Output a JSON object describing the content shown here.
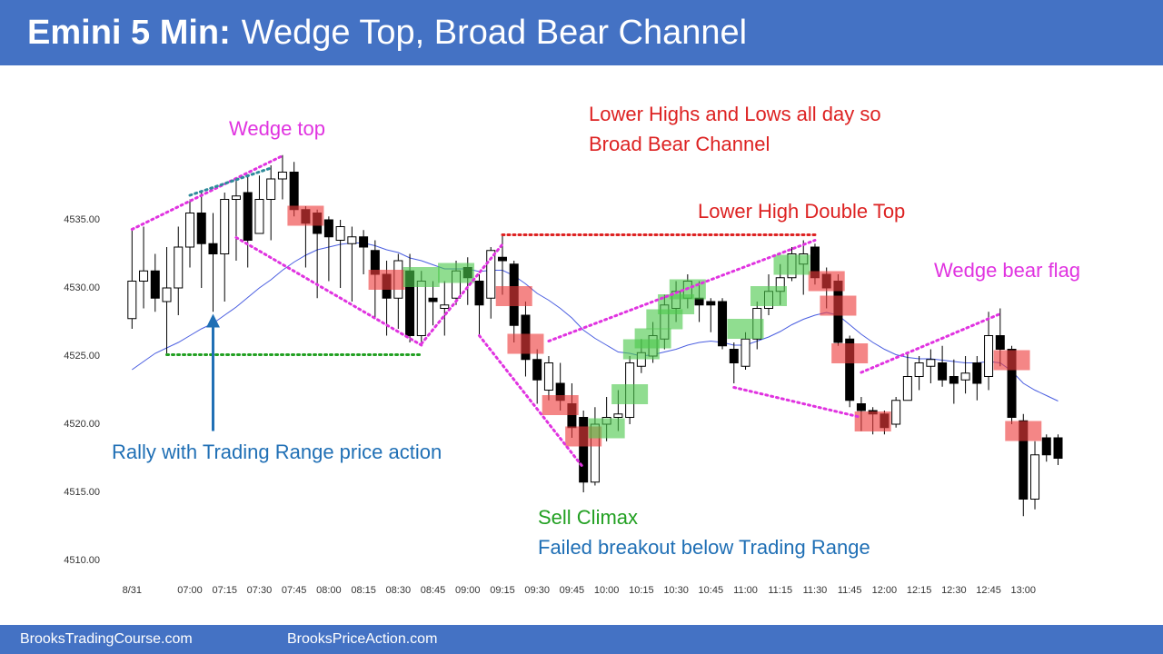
{
  "header": {
    "title_bold": "Emini 5 Min:",
    "title": "Wedge Top, Broad Bear Channel"
  },
  "chart_data": {
    "type": "candlestick",
    "categories": [
      "8/31",
      null,
      null,
      null,
      null,
      "07:00",
      null,
      null,
      "07:15",
      null,
      null,
      "07:30",
      null,
      null,
      "07:45",
      null,
      null,
      "08:00",
      null,
      null,
      "08:15",
      null,
      null,
      "08:30",
      null,
      null,
      "08:45",
      null,
      null,
      "09:00",
      null,
      null,
      "09:15",
      null,
      null,
      "09:30",
      null,
      null,
      "09:45",
      null,
      null,
      "10:00",
      null,
      null,
      "10:15",
      null,
      null,
      "10:30",
      null,
      null,
      "10:45",
      null,
      null,
      "11:00",
      null,
      null,
      "11:15",
      null,
      null,
      "11:30",
      null,
      null,
      "11:45",
      null,
      null,
      "12:00",
      null,
      null,
      "12:15",
      null,
      null,
      "12:30",
      null,
      null,
      "12:45",
      null,
      null,
      "13:00",
      null,
      null,
      null
    ],
    "open": [
      4527.75,
      4530.5,
      4531.25,
      4529.0,
      4530.0,
      4533.0,
      4535.5,
      4533.25,
      4532.5,
      4536.5,
      4537.0,
      4534.0,
      4536.5,
      4538.0,
      4538.5,
      4535.75,
      4535.5,
      4535.0,
      4533.5,
      4533.25,
      4533.75,
      4532.75,
      4531.0,
      4529.25,
      4531.25,
      4526.5,
      4529.25,
      4528.5,
      4529.25,
      4531.5,
      4530.5,
      4529.25,
      4532.25,
      4531.75,
      4528.0,
      4524.75,
      4522.5,
      4523.0,
      4521.5,
      4520.5,
      4515.75,
      4520.0,
      4520.5,
      4520.5,
      4524.25,
      4525.0,
      4526.25,
      4528.5,
      4529.25,
      4529.25,
      4529.0,
      4529.0,
      4525.5,
      4524.25,
      4526.25,
      4528.5,
      4529.75,
      4530.75,
      4531.75,
      4533.0,
      4531.0,
      4530.5,
      4526.25,
      4521.5,
      4521.0,
      4520.75,
      4520.0,
      4521.75,
      4523.5,
      4524.25,
      4524.5,
      4523.5,
      4523.25,
      4524.5,
      4523.5,
      4526.5,
      4525.5,
      4520.25,
      4514.5,
      4519.0,
      4519.0
    ],
    "high": [
      4534.25,
      4534.5,
      4532.5,
      4533.0,
      4534.5,
      4536.5,
      4537.0,
      4535.5,
      4537.0,
      4538.0,
      4538.25,
      4538.25,
      4539.0,
      4539.75,
      4539.25,
      4536.0,
      4535.75,
      4535.25,
      4535.0,
      4534.5,
      4534.25,
      4533.5,
      4532.0,
      4532.5,
      4532.5,
      4531.25,
      4530.5,
      4530.5,
      4532.0,
      4532.25,
      4531.0,
      4533.0,
      4534.0,
      4532.0,
      4529.0,
      4525.5,
      4525.0,
      4524.5,
      4523.0,
      4521.0,
      4521.25,
      4522.0,
      4522.5,
      4525.0,
      4526.25,
      4527.5,
      4529.5,
      4530.5,
      4531.0,
      4530.5,
      4529.25,
      4529.25,
      4526.0,
      4526.75,
      4529.0,
      4531.0,
      4531.75,
      4533.0,
      4533.5,
      4533.25,
      4531.5,
      4531.0,
      4526.5,
      4522.0,
      4521.25,
      4521.0,
      4522.0,
      4525.25,
      4525.0,
      4525.5,
      4525.75,
      4524.75,
      4525.0,
      4525.0,
      4528.25,
      4528.5,
      4525.75,
      4520.75,
      4518.75,
      4519.25,
      4519.25
    ],
    "low": [
      4527.0,
      4528.5,
      4528.25,
      4525.0,
      4528.0,
      4531.5,
      4530.0,
      4528.25,
      4529.0,
      4532.0,
      4531.5,
      4534.0,
      4533.5,
      4536.5,
      4535.25,
      4531.5,
      4529.25,
      4530.5,
      4530.0,
      4529.0,
      4531.0,
      4527.75,
      4526.5,
      4527.0,
      4526.0,
      4525.75,
      4527.25,
      4526.5,
      4528.75,
      4528.75,
      4526.5,
      4527.75,
      4529.5,
      4526.0,
      4523.5,
      4521.5,
      4521.75,
      4521.0,
      4519.0,
      4515.0,
      4515.5,
      4518.75,
      4519.5,
      4520.0,
      4523.75,
      4524.5,
      4525.5,
      4527.5,
      4528.5,
      4527.5,
      4526.75,
      4525.5,
      4523.0,
      4524.0,
      4525.5,
      4528.0,
      4528.75,
      4530.5,
      4529.5,
      4530.25,
      4528.5,
      4525.75,
      4521.25,
      4519.5,
      4519.25,
      4519.25,
      4519.75,
      4521.75,
      4522.5,
      4523.0,
      4522.75,
      4521.5,
      4522.25,
      4521.75,
      4522.5,
      4524.25,
      4520.0,
      4513.25,
      4513.75,
      4517.25,
      4517.0
    ],
    "close": [
      4530.5,
      4531.25,
      4529.25,
      4530.0,
      4533.0,
      4535.5,
      4533.25,
      4532.5,
      4536.5,
      4536.75,
      4533.5,
      4536.5,
      4538.0,
      4538.5,
      4535.75,
      4534.75,
      4534.0,
      4533.75,
      4534.5,
      4533.75,
      4533.0,
      4531.0,
      4529.25,
      4532.0,
      4526.5,
      4530.5,
      4529.0,
      4528.75,
      4531.25,
      4530.75,
      4528.75,
      4532.75,
      4532.0,
      4527.25,
      4524.75,
      4523.25,
      4524.5,
      4521.75,
      4519.75,
      4515.75,
      4520.0,
      4520.5,
      4520.75,
      4524.5,
      4525.25,
      4526.5,
      4528.75,
      4529.75,
      4530.5,
      4528.75,
      4528.75,
      4525.75,
      4524.5,
      4526.25,
      4528.5,
      4529.75,
      4530.75,
      4532.5,
      4532.5,
      4530.75,
      4530.0,
      4526.0,
      4521.75,
      4521.0,
      4520.75,
      4519.75,
      4521.75,
      4523.5,
      4524.5,
      4524.75,
      4523.25,
      4523.0,
      4523.75,
      4523.0,
      4526.5,
      4525.5,
      4520.5,
      4514.5,
      4517.75,
      4517.75,
      4517.5
    ],
    "up_color": "#ffffff",
    "down_color": "#000000",
    "ma": {
      "color": "#4a5ee0",
      "values": [
        4524.0,
        4524.6,
        4525.2,
        4525.6,
        4526.0,
        4526.5,
        4527.0,
        4527.4,
        4528.0,
        4528.6,
        4529.3,
        4530.0,
        4530.6,
        4531.3,
        4531.9,
        4532.4,
        4532.8,
        4533.0,
        4533.2,
        4533.3,
        4533.3,
        4533.1,
        4532.8,
        4532.6,
        4532.2,
        4532.0,
        4531.7,
        4531.4,
        4531.4,
        4531.4,
        4531.2,
        4531.3,
        4531.3,
        4530.9,
        4530.3,
        4529.6,
        4529.1,
        4528.5,
        4527.8,
        4526.9,
        4526.3,
        4525.8,
        4525.3,
        4525.2,
        4525.0,
        4525.1,
        4525.3,
        4525.5,
        4525.8,
        4526.0,
        4526.1,
        4526.0,
        4525.8,
        4525.8,
        4526.1,
        4526.4,
        4526.8,
        4527.3,
        4527.7,
        4528.0,
        4528.2,
        4528.0,
        4527.3,
        4526.6,
        4526.0,
        4525.5,
        4525.1,
        4524.9,
        4524.8,
        4524.8,
        4524.7,
        4524.6,
        4524.5,
        4524.5,
        4524.6,
        4524.5,
        4523.9,
        4523.0,
        4522.5,
        4522.1,
        4521.7
      ]
    },
    "ylim": [
      4508,
      4546
    ],
    "yticks": [
      {
        "value": 4510,
        "label": "4510.00"
      },
      {
        "value": 4515,
        "label": "4515.00"
      },
      {
        "value": 4520,
        "label": "4520.00"
      },
      {
        "value": 4525,
        "label": "4525.00"
      },
      {
        "value": 4530,
        "label": "4530.00"
      },
      {
        "value": 4535,
        "label": "4535.00"
      }
    ],
    "grid": false,
    "highlights": [
      {
        "color": "#ee3b3b",
        "index": 15,
        "price": 4535.3
      },
      {
        "color": "#ee3b3b",
        "index": 22,
        "price": 4530.6
      },
      {
        "color": "#ee3b3b",
        "index": 33,
        "price": 4529.4
      },
      {
        "color": "#ee3b3b",
        "index": 34,
        "price": 4525.9
      },
      {
        "color": "#ee3b3b",
        "index": 37,
        "price": 4521.4
      },
      {
        "color": "#ee3b3b",
        "index": 39,
        "price": 4519.1
      },
      {
        "color": "#ee3b3b",
        "index": 60,
        "price": 4530.5
      },
      {
        "color": "#ee3b3b",
        "index": 61,
        "price": 4528.7
      },
      {
        "color": "#ee3b3b",
        "index": 62,
        "price": 4525.2
      },
      {
        "color": "#ee3b3b",
        "index": 64,
        "price": 4520.2
      },
      {
        "color": "#ee3b3b",
        "index": 76,
        "price": 4524.7
      },
      {
        "color": "#ee3b3b",
        "index": 77,
        "price": 4519.5
      },
      {
        "color": "#4cc84c",
        "index": 25,
        "price": 4530.8
      },
      {
        "color": "#4cc84c",
        "index": 28,
        "price": 4531.1
      },
      {
        "color": "#4cc84c",
        "index": 41,
        "price": 4519.7
      },
      {
        "color": "#4cc84c",
        "index": 43,
        "price": 4522.2
      },
      {
        "color": "#4cc84c",
        "index": 44,
        "price": 4525.5
      },
      {
        "color": "#4cc84c",
        "index": 45,
        "price": 4526.3
      },
      {
        "color": "#4cc84c",
        "index": 46,
        "price": 4527.7
      },
      {
        "color": "#4cc84c",
        "index": 47,
        "price": 4528.8
      },
      {
        "color": "#4cc84c",
        "index": 48,
        "price": 4529.9
      },
      {
        "color": "#4cc84c",
        "index": 53,
        "price": 4527.0
      },
      {
        "color": "#4cc84c",
        "index": 55,
        "price": 4529.4
      },
      {
        "color": "#4cc84c",
        "index": 57,
        "price": 4531.7
      }
    ],
    "lines": [
      {
        "color": "#e033e0",
        "from": {
          "index": 0,
          "price": 4534.3
        },
        "to": {
          "index": 13,
          "price": 4539.7
        }
      },
      {
        "color": "#2e8b9b",
        "from": {
          "index": 5,
          "price": 4536.8
        },
        "to": {
          "index": 12,
          "price": 4538.8
        }
      },
      {
        "color": "#e033e0",
        "from": {
          "index": 9,
          "price": 4533.7
        },
        "to": {
          "index": 25,
          "price": 4525.8
        }
      },
      {
        "color": "#22a022",
        "from": {
          "index": 3,
          "price": 4525.1
        },
        "to": {
          "index": 25,
          "price": 4525.1
        }
      },
      {
        "color": "#e033e0",
        "from": {
          "index": 25,
          "price": 4525.9
        },
        "to": {
          "index": 32,
          "price": 4533.2
        }
      },
      {
        "color": "#dd2222",
        "from": {
          "index": 32,
          "price": 4533.9
        },
        "to": {
          "index": 59,
          "price": 4533.9
        }
      },
      {
        "color": "#e033e0",
        "from": {
          "index": 30,
          "price": 4526.5
        },
        "to": {
          "index": 39,
          "price": 4516.8
        }
      },
      {
        "color": "#e033e0",
        "from": {
          "index": 36,
          "price": 4526.1
        },
        "to": {
          "index": 59,
          "price": 4533.5
        }
      },
      {
        "color": "#e033e0",
        "from": {
          "index": 52,
          "price": 4522.7
        },
        "to": {
          "index": 63,
          "price": 4520.5
        }
      },
      {
        "color": "#e033e0",
        "from": {
          "index": 63,
          "price": 4523.8
        },
        "to": {
          "index": 75,
          "price": 4528.1
        }
      }
    ],
    "arrows": [
      {
        "color": "#1f6fb5",
        "index": 7,
        "from": 4519.5,
        "to": 4527.6
      }
    ],
    "annotations": [
      {
        "text": "Wedge top",
        "color": "#e033e0"
      },
      {
        "text": "Lower Highs and Lows all day so",
        "color": "#dd2222"
      },
      {
        "text": "Broad Bear Channel",
        "color": "#dd2222"
      },
      {
        "text": "Lower High Double Top",
        "color": "#dd2222"
      },
      {
        "text": "Wedge bear flag",
        "color": "#e033e0"
      },
      {
        "text": "Rally with Trading Range price action",
        "color": "#1f6fb5"
      },
      {
        "text": "Sell Climax",
        "color": "#22a022"
      },
      {
        "text": "Failed breakout below Trading Range",
        "color": "#1f6fb5"
      }
    ]
  },
  "footer": {
    "links": [
      "BrooksTradingCourse.com",
      "BrooksPriceAction.com"
    ]
  }
}
